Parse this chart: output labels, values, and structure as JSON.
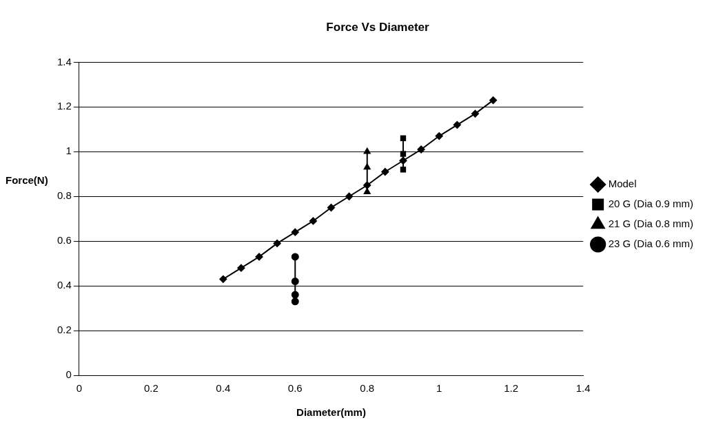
{
  "chart_data": {
    "type": "line",
    "title": "Force Vs Diameter",
    "xlabel": "Diameter(mm)",
    "ylabel": "Force(N)",
    "xlim": [
      0,
      1.4
    ],
    "xticks": [
      0,
      0.2,
      0.4,
      0.6,
      0.8,
      1,
      1.2,
      1.4
    ],
    "ylim": [
      0,
      1.4
    ],
    "yticks": [
      0,
      0.2,
      0.4,
      0.6,
      0.8,
      1,
      1.2,
      1.4
    ],
    "grid": "y",
    "legend": "right",
    "series": [
      {
        "name": "Model",
        "color": "#000000",
        "marker": "diamond",
        "x": [
          0.4,
          0.45,
          0.5,
          0.55,
          0.6,
          0.65,
          0.7,
          0.75,
          0.8,
          0.85,
          0.9,
          0.95,
          1,
          1.05,
          1.1,
          1.15
        ],
        "values": [
          0.43,
          0.48,
          0.53,
          0.59,
          0.64,
          0.69,
          0.75,
          0.8,
          0.85,
          0.91,
          0.96,
          1.01,
          1.07,
          1.12,
          1.17,
          1.23
        ]
      },
      {
        "name": "20 G (Dia 0.9 mm)",
        "color": "#000000",
        "marker": "square",
        "x": [
          0.9,
          0.9,
          0.9
        ],
        "values": [
          1.06,
          0.99,
          0.92
        ]
      },
      {
        "name": "21 G (Dia 0.8 mm)",
        "color": "#000000",
        "marker": "triangle",
        "x": [
          0.8,
          0.8,
          0.8
        ],
        "values": [
          1.0,
          0.93,
          0.82
        ]
      },
      {
        "name": "23 G (Dia 0.6 mm)",
        "color": "#000000",
        "marker": "circle",
        "x": [
          0.6,
          0.6,
          0.6,
          0.6
        ],
        "values": [
          0.53,
          0.42,
          0.36,
          0.33
        ]
      }
    ]
  }
}
